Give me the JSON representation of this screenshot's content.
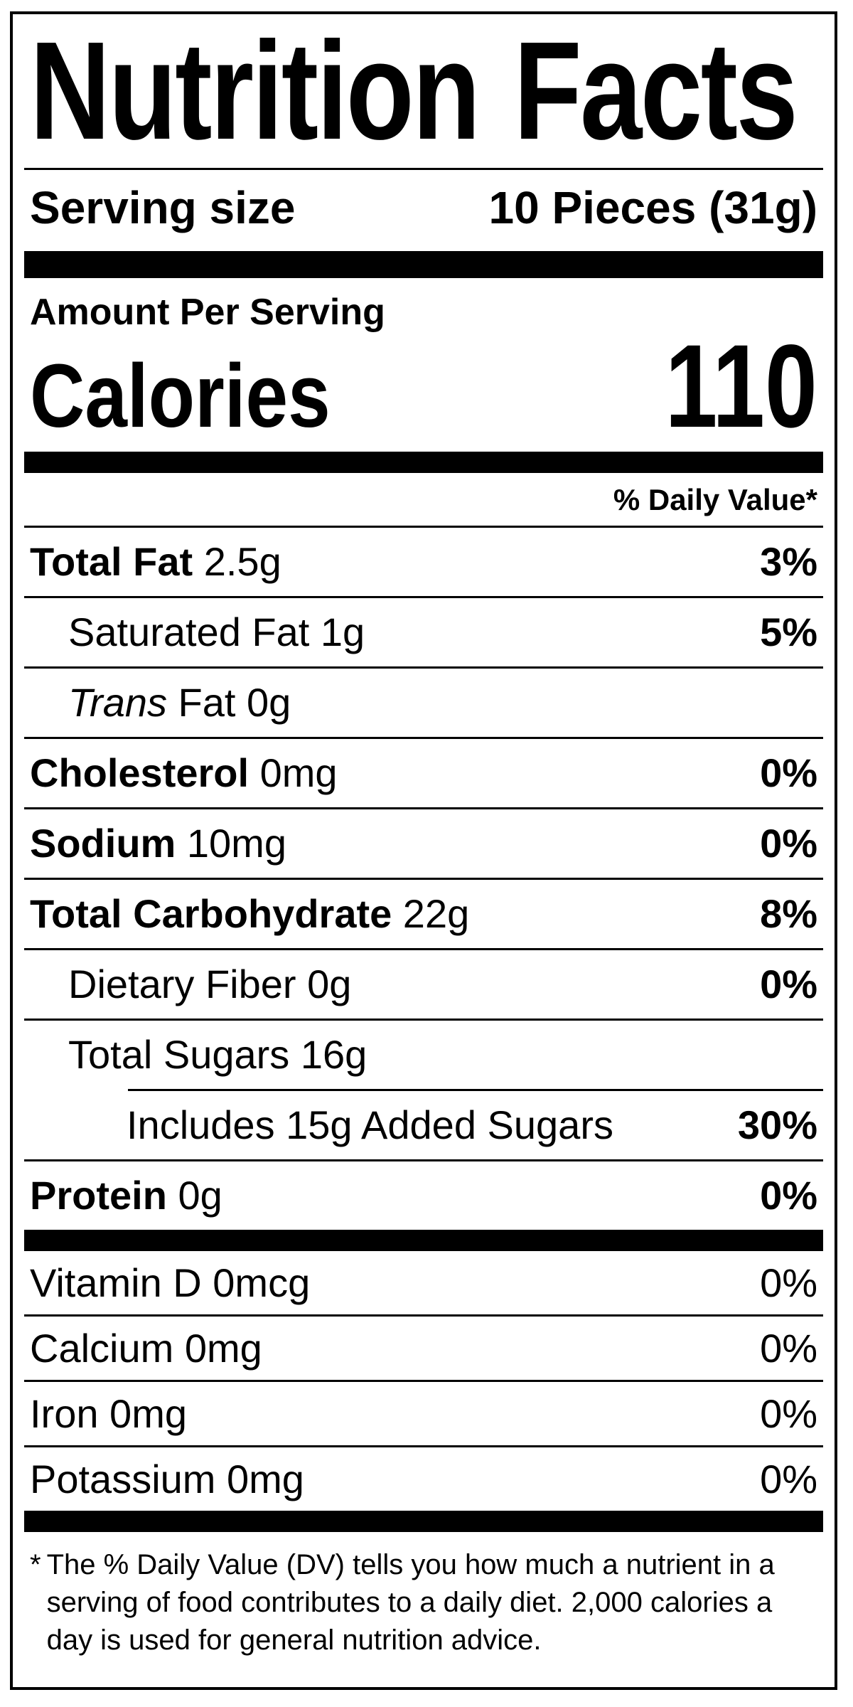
{
  "nutrition_label": {
    "title": "Nutrition Facts",
    "serving": {
      "label": "Serving size",
      "value": "10 Pieces (31g)"
    },
    "amount_per_serving": "Amount Per Serving",
    "calories": {
      "label": "Calories",
      "value": "110"
    },
    "daily_value_header": "% Daily Value*",
    "nutrients": [
      {
        "bold": "Total Fat",
        "rest": " 2.5g",
        "pct": "3%"
      },
      {
        "rest": "Saturated Fat 1g",
        "pct": "5%"
      },
      {
        "italic": "Trans",
        "rest": " Fat 0g",
        "pct": ""
      },
      {
        "bold": "Cholesterol",
        "rest": " 0mg",
        "pct": "0%"
      },
      {
        "bold": "Sodium",
        "rest": " 10mg",
        "pct": "0%"
      },
      {
        "bold": "Total Carbohydrate",
        "rest": " 22g",
        "pct": "8%"
      },
      {
        "rest": "Dietary Fiber 0g",
        "pct": "0%"
      },
      {
        "rest": "Total Sugars 16g",
        "pct": ""
      },
      {
        "rest": "Includes 15g Added Sugars",
        "pct": "30%"
      },
      {
        "bold": "Protein",
        "rest": " 0g",
        "pct": "0%"
      }
    ],
    "micronutrients": [
      {
        "rest": "Vitamin D 0mcg",
        "pct": "0%"
      },
      {
        "rest": "Calcium 0mg",
        "pct": "0%"
      },
      {
        "rest": "Iron 0mg",
        "pct": "0%"
      },
      {
        "rest": "Potassium 0mg",
        "pct": "0%"
      }
    ],
    "footnote": {
      "marker": "*",
      "lines": [
        "The % Daily Value (DV) tells you how much a nutrient in a",
        "serving of food contributes to a daily diet. 2,000 calories a",
        "day is used for general nutrition advice."
      ]
    },
    "colors": {
      "foreground": "#000000",
      "background": "#ffffff"
    }
  }
}
